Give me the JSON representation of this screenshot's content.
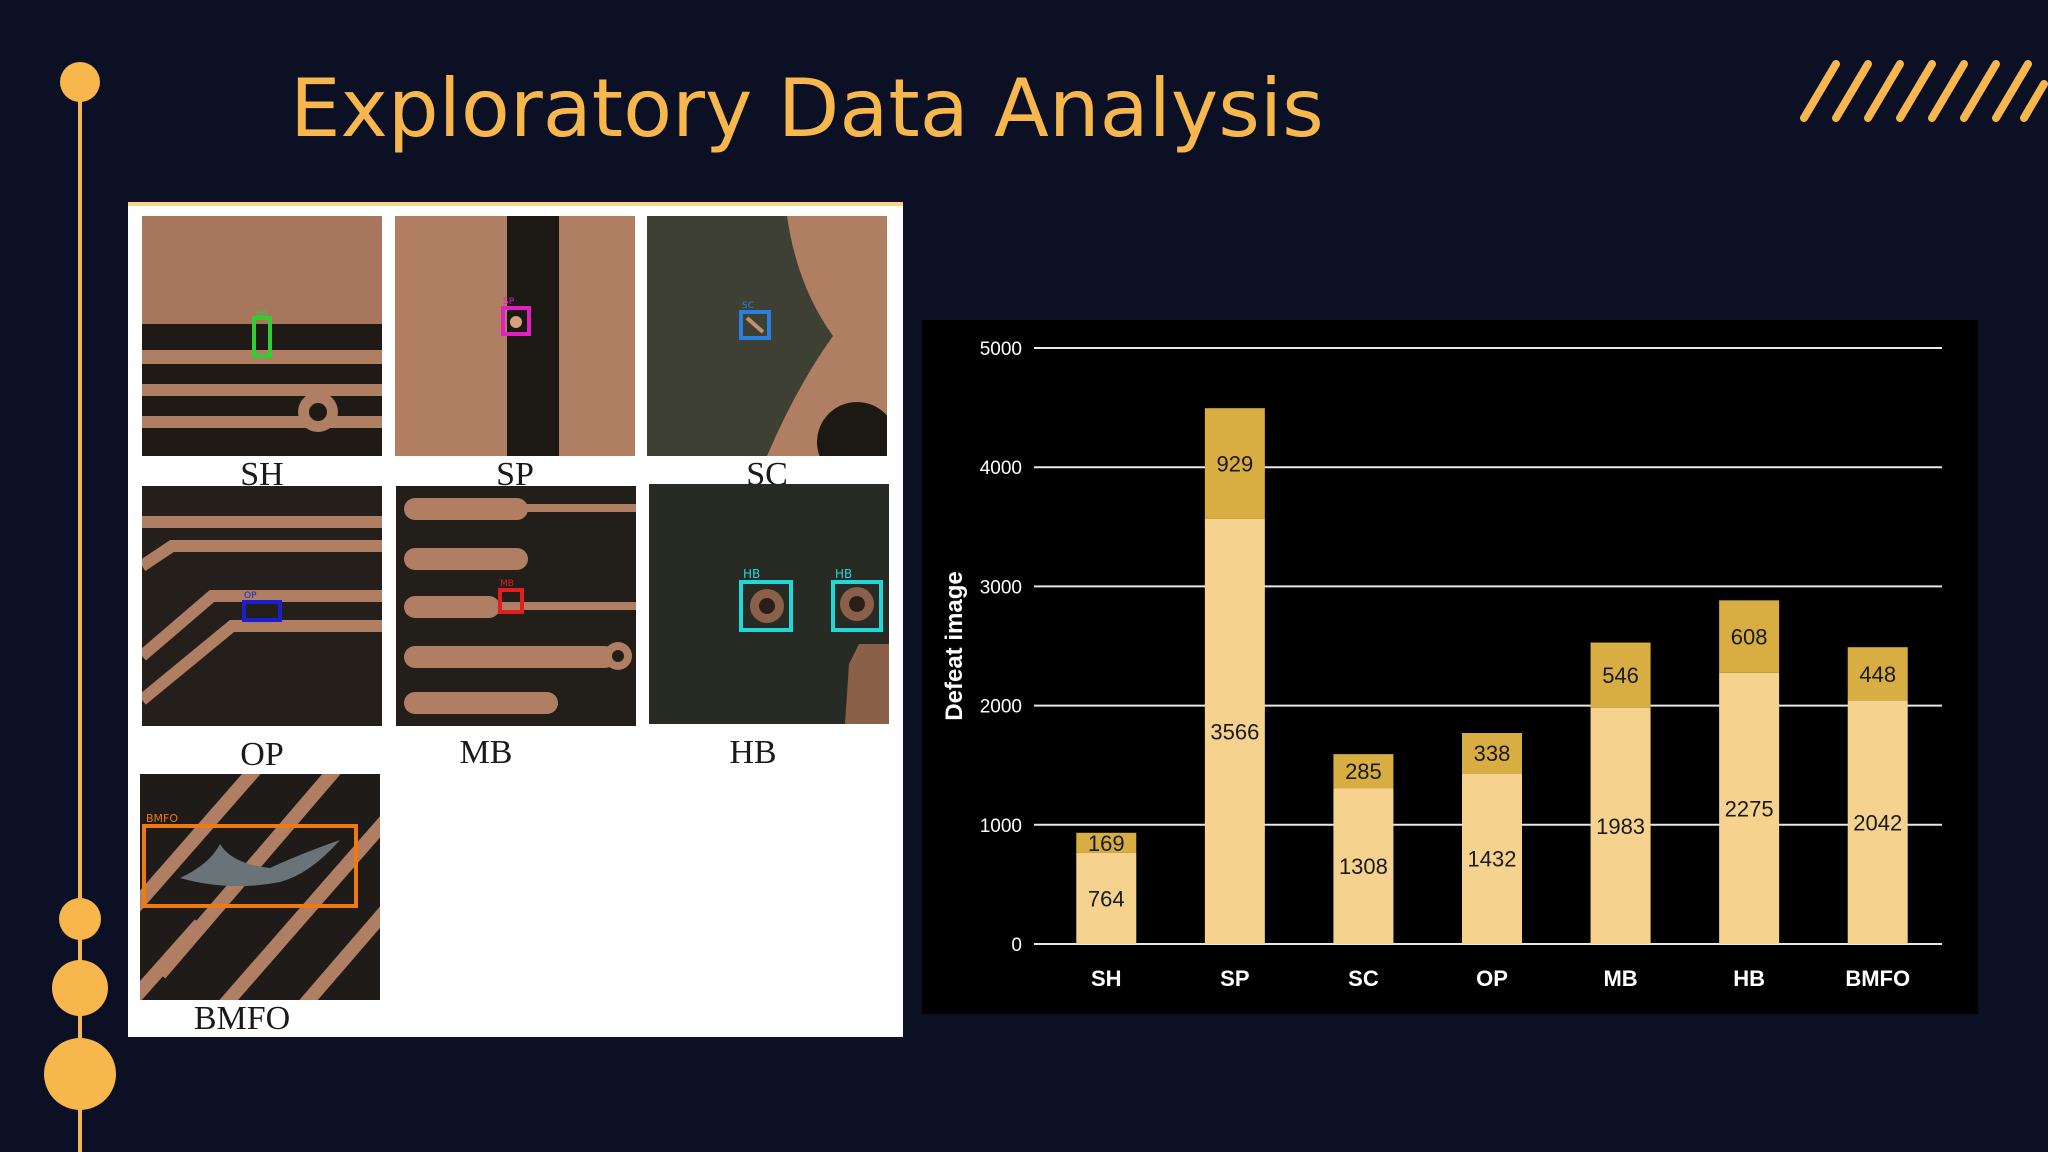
{
  "slide": {
    "title": "Exploratory Data Analysis",
    "accent_color": "#f7b74c",
    "background_color": "#0c1024"
  },
  "gallery": {
    "samples": [
      {
        "label": "SH",
        "box_text": "SH",
        "box_color": "#33cc33"
      },
      {
        "label": "SP",
        "box_text": "SP",
        "box_color": "#e020c0"
      },
      {
        "label": "SC",
        "box_text": "SC",
        "box_color": "#2a80e0"
      },
      {
        "label": "OP",
        "box_text": "OP",
        "box_color": "#1a20d0"
      },
      {
        "label": "MB",
        "box_text": "MB",
        "box_color": "#e02020"
      },
      {
        "label": "HB",
        "box_text": "HB",
        "box_color": "#20d8d8"
      },
      {
        "label": "BMFO",
        "box_text": "BMFO",
        "box_color": "#f07a10"
      }
    ]
  },
  "chart_data": {
    "type": "bar",
    "stacked": true,
    "categories": [
      "SH",
      "SP",
      "SC",
      "OP",
      "MB",
      "HB",
      "BMFO"
    ],
    "series": [
      {
        "values": [
          764,
          3566,
          1308,
          1432,
          1983,
          2275,
          2042
        ],
        "color": "#f6d28f"
      },
      {
        "values": [
          169,
          929,
          285,
          338,
          546,
          608,
          448
        ],
        "color": "#d8ad42"
      }
    ],
    "ylabel": "Defeat image",
    "ylim": [
      0,
      5000
    ],
    "yticks": [
      0,
      1000,
      2000,
      3000,
      4000,
      5000
    ],
    "grid": true,
    "background": "#000000"
  }
}
